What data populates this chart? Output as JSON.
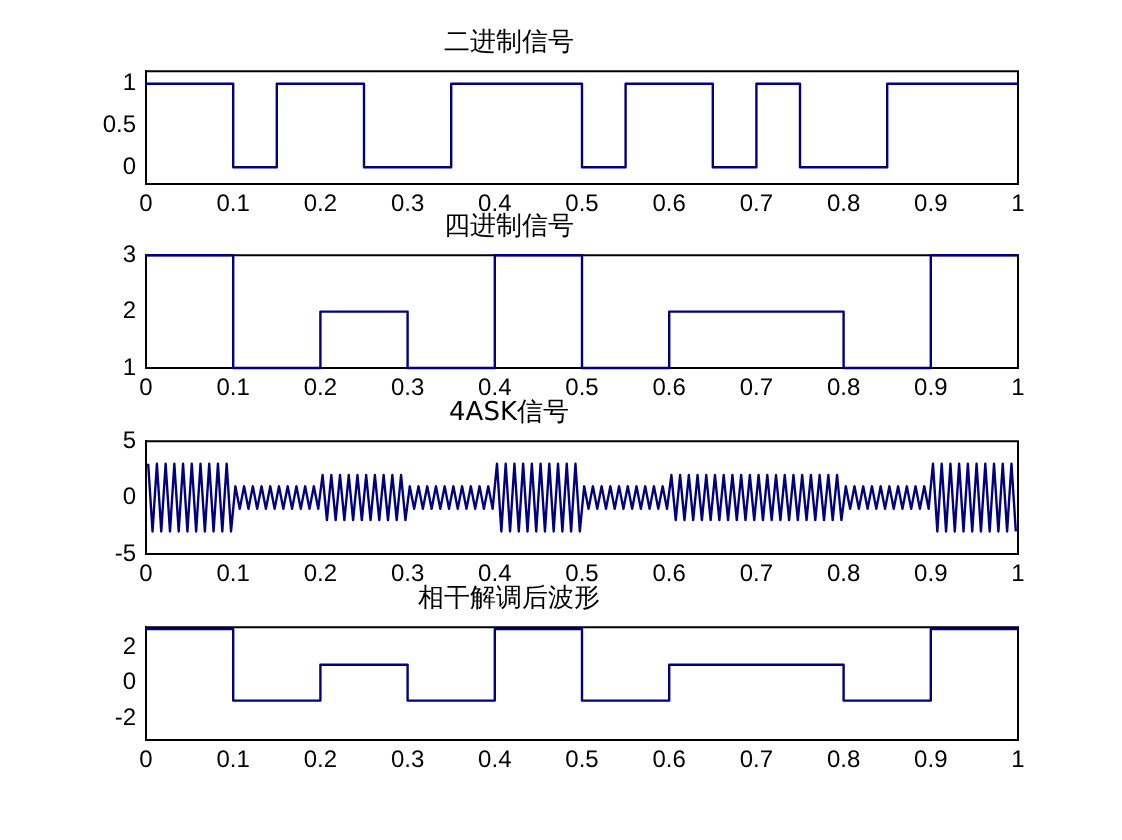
{
  "chart_data": [
    {
      "type": "step",
      "title": "二进制信号",
      "color": "#000080",
      "x": [
        0,
        0.1,
        0.15,
        0.25,
        0.35,
        0.5,
        0.55,
        0.65,
        0.7,
        0.75,
        0.85,
        1
      ],
      "values": [
        1,
        0,
        1,
        0,
        1,
        0,
        1,
        0,
        1,
        0,
        1,
        1
      ],
      "xlim": [
        0,
        1
      ],
      "xticks": [
        0,
        0.1,
        0.2,
        0.3,
        0.4,
        0.5,
        0.6,
        0.7,
        0.8,
        0.9,
        1
      ],
      "ylim": [
        -0.2,
        1.15
      ],
      "yticks": [
        0,
        0.5,
        1
      ],
      "grid": false,
      "marker": "none"
    },
    {
      "type": "step",
      "title": "四进制信号",
      "color": "#000080",
      "x": [
        0,
        0.1,
        0.2,
        0.3,
        0.4,
        0.5,
        0.6,
        0.8,
        0.9,
        1
      ],
      "values": [
        3,
        1,
        2,
        1,
        3,
        1,
        2,
        1,
        3,
        3
      ],
      "xlim": [
        0,
        1
      ],
      "xticks": [
        0,
        0.1,
        0.2,
        0.3,
        0.4,
        0.5,
        0.6,
        0.7,
        0.8,
        0.9,
        1
      ],
      "ylim": [
        1,
        3
      ],
      "yticks": [
        1,
        2,
        3
      ],
      "grid": false,
      "marker": "none"
    },
    {
      "type": "line",
      "title": "4ASK信号",
      "color": "#000080",
      "x": [
        0.0025,
        0.0075,
        0.0125,
        0.0175,
        0.0225,
        0.0275,
        0.0325,
        0.0375,
        0.0425,
        0.0475,
        0.0525,
        0.0575,
        0.0625,
        0.0675,
        0.0725,
        0.0775,
        0.0825,
        0.0875,
        0.0925,
        0.0975,
        0.1025,
        0.1075,
        0.1125,
        0.1175,
        0.1225,
        0.1275,
        0.1325,
        0.1375,
        0.1425,
        0.1475,
        0.1525,
        0.1575,
        0.1625,
        0.1675,
        0.1725,
        0.1775,
        0.1825,
        0.1875,
        0.1925,
        0.1975,
        0.2025,
        0.2075,
        0.2125,
        0.2175,
        0.2225,
        0.2275,
        0.2325,
        0.2375,
        0.2425,
        0.2475,
        0.2525,
        0.2575,
        0.2625,
        0.2675,
        0.2725,
        0.2775,
        0.2825,
        0.2875,
        0.2925,
        0.2975,
        0.3025,
        0.3075,
        0.3125,
        0.3175,
        0.3225,
        0.3275,
        0.3325,
        0.3375,
        0.3425,
        0.3475,
        0.3525,
        0.3575,
        0.3625,
        0.3675,
        0.3725,
        0.3775,
        0.3825,
        0.3875,
        0.3925,
        0.3975,
        0.4025,
        0.4075,
        0.4125,
        0.4175,
        0.4225,
        0.4275,
        0.4325,
        0.4375,
        0.4425,
        0.4475,
        0.4525,
        0.4575,
        0.4625,
        0.4675,
        0.4725,
        0.4775,
        0.4825,
        0.4875,
        0.4925,
        0.4975,
        0.5025,
        0.5075,
        0.5125,
        0.5175,
        0.5225,
        0.5275,
        0.5325,
        0.5375,
        0.5425,
        0.5475,
        0.5525,
        0.5575,
        0.5625,
        0.5675,
        0.5725,
        0.5775,
        0.5825,
        0.5875,
        0.5925,
        0.5975,
        0.6025,
        0.6075,
        0.6125,
        0.6175,
        0.6225,
        0.6275,
        0.6325,
        0.6375,
        0.6425,
        0.6475,
        0.6525,
        0.6575,
        0.6625,
        0.6675,
        0.6725,
        0.6775,
        0.6825,
        0.6875,
        0.6925,
        0.6975,
        0.7025,
        0.7075,
        0.7125,
        0.7175,
        0.7225,
        0.7275,
        0.7325,
        0.7375,
        0.7425,
        0.7475,
        0.7525,
        0.7575,
        0.7625,
        0.7675,
        0.7725,
        0.7775,
        0.7825,
        0.7875,
        0.7925,
        0.7975,
        0.8025,
        0.8075,
        0.8125,
        0.8175,
        0.8225,
        0.8275,
        0.8325,
        0.8375,
        0.8425,
        0.8475,
        0.8525,
        0.8575,
        0.8625,
        0.8675,
        0.8725,
        0.8775,
        0.8825,
        0.8875,
        0.8925,
        0.8975,
        0.9025,
        0.9075,
        0.9125,
        0.9175,
        0.9225,
        0.9275,
        0.9325,
        0.9375,
        0.9425,
        0.9475,
        0.9525,
        0.9575,
        0.9625,
        0.9675,
        0.9725,
        0.9775,
        0.9825,
        0.9875,
        0.9925,
        0.9975
      ],
      "values": [
        3,
        -3,
        3,
        -3,
        3,
        -3,
        3,
        -3,
        3,
        -3,
        3,
        -3,
        3,
        -3,
        3,
        -3,
        3,
        -3,
        3,
        -3,
        1,
        -1,
        1,
        -1,
        1,
        -1,
        1,
        -1,
        1,
        -1,
        1,
        -1,
        1,
        -1,
        1,
        -1,
        1,
        -1,
        1,
        -1,
        2,
        -2,
        2,
        -2,
        2,
        -2,
        2,
        -2,
        2,
        -2,
        2,
        -2,
        2,
        -2,
        2,
        -2,
        2,
        -2,
        2,
        -2,
        1,
        -1,
        1,
        -1,
        1,
        -1,
        1,
        -1,
        1,
        -1,
        1,
        -1,
        1,
        -1,
        1,
        -1,
        1,
        -1,
        1,
        -1,
        3,
        -3,
        3,
        -3,
        3,
        -3,
        3,
        -3,
        3,
        -3,
        3,
        -3,
        3,
        -3,
        3,
        -3,
        3,
        -3,
        3,
        -3,
        1,
        -1,
        1,
        -1,
        1,
        -1,
        1,
        -1,
        1,
        -1,
        1,
        -1,
        1,
        -1,
        1,
        -1,
        1,
        -1,
        1,
        -1,
        2,
        -2,
        2,
        -2,
        2,
        -2,
        2,
        -2,
        2,
        -2,
        2,
        -2,
        2,
        -2,
        2,
        -2,
        2,
        -2,
        2,
        -2,
        2,
        -2,
        2,
        -2,
        2,
        -2,
        2,
        -2,
        2,
        -2,
        2,
        -2,
        2,
        -2,
        2,
        -2,
        2,
        -2,
        2,
        -2,
        1,
        -1,
        1,
        -1,
        1,
        -1,
        1,
        -1,
        1,
        -1,
        1,
        -1,
        1,
        -1,
        1,
        -1,
        1,
        -1,
        1,
        -1,
        3,
        -3,
        3,
        -3,
        3,
        -3,
        3,
        -3,
        3,
        -3,
        3,
        -3,
        3,
        -3,
        3,
        -3,
        3,
        -3,
        3,
        -3
      ],
      "xlim": [
        0,
        1
      ],
      "xticks": [
        0,
        0.1,
        0.2,
        0.3,
        0.4,
        0.5,
        0.6,
        0.7,
        0.8,
        0.9,
        1
      ],
      "ylim": [
        -5,
        5
      ],
      "yticks": [
        -5,
        0,
        5
      ],
      "grid": false,
      "marker": "none"
    },
    {
      "type": "step",
      "title": "相干解调后波形",
      "color": "#000080",
      "x": [
        0,
        0.1,
        0.2,
        0.3,
        0.4,
        0.5,
        0.6,
        0.8,
        0.9,
        1
      ],
      "values": [
        3,
        -1,
        1,
        -1,
        3,
        -1,
        1,
        -1,
        3,
        3
      ],
      "xlim": [
        0,
        1
      ],
      "xticks": [
        0,
        0.1,
        0.2,
        0.3,
        0.4,
        0.5,
        0.6,
        0.7,
        0.8,
        0.9,
        1
      ],
      "ylim": [
        -3.2,
        3.1
      ],
      "yticks": [
        -2,
        0,
        2
      ],
      "grid": false,
      "marker": "none"
    }
  ]
}
